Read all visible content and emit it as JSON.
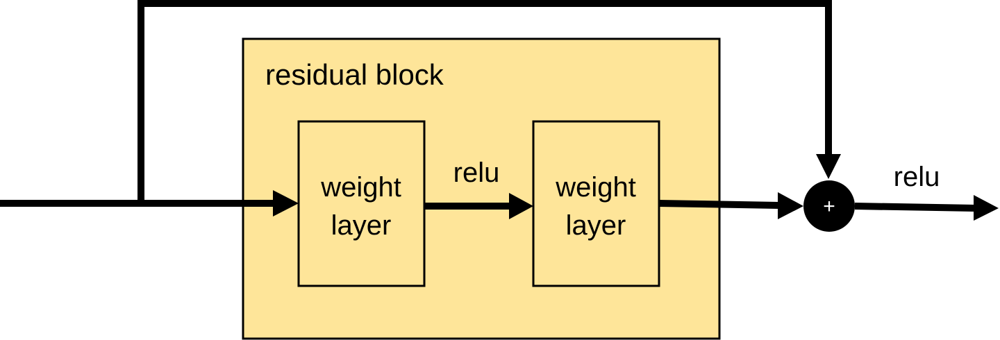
{
  "diagram": {
    "residual_block": {
      "label": "residual block",
      "fill_color": "#FEE599",
      "stroke_color": "#000000"
    },
    "layers": [
      {
        "line1": "weight",
        "line2": "layer"
      },
      {
        "line1": "weight",
        "line2": "layer"
      }
    ],
    "edge_labels": {
      "between_layers": "relu",
      "output": "relu"
    },
    "add_node": {
      "symbol": "+",
      "fill_color": "#000000"
    },
    "line_color": "#000000"
  }
}
